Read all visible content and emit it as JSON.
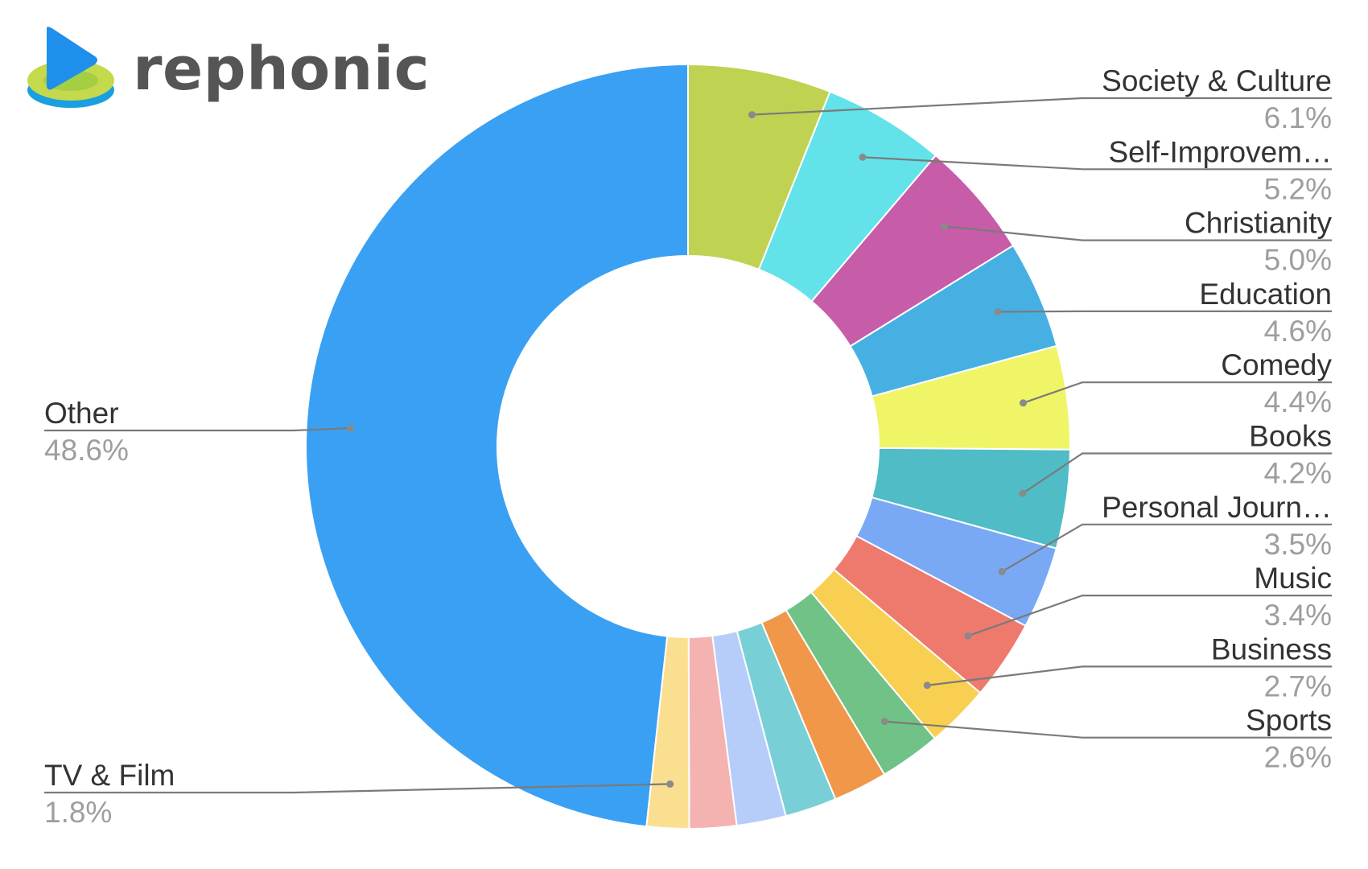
{
  "brand": {
    "name": "rephonic"
  },
  "chart_data": {
    "type": "pie",
    "donut": true,
    "title": "",
    "legend": "labels-with-leaders",
    "slices": [
      {
        "label": "Society & Culture",
        "value": 6.1,
        "display": "6.1%",
        "color": "#bfd252"
      },
      {
        "label": "Self-Improvem…",
        "value": 5.2,
        "display": "5.2%",
        "color": "#63e2ea"
      },
      {
        "label": "Christianity",
        "value": 5.0,
        "display": "5.0%",
        "color": "#c75ca9"
      },
      {
        "label": "Education",
        "value": 4.6,
        "display": "4.6%",
        "color": "#46b0e3"
      },
      {
        "label": "Comedy",
        "value": 4.4,
        "display": "4.4%",
        "color": "#eff567"
      },
      {
        "label": "Books",
        "value": 4.2,
        "display": "4.2%",
        "color": "#4fbcc6"
      },
      {
        "label": "Personal Journ…",
        "value": 3.5,
        "display": "3.5%",
        "color": "#79a9f5"
      },
      {
        "label": "Music",
        "value": 3.4,
        "display": "3.4%",
        "color": "#ee7a6e"
      },
      {
        "label": "Business",
        "value": 2.7,
        "display": "2.7%",
        "color": "#f8cf50"
      },
      {
        "label": "Sports",
        "value": 2.6,
        "display": "2.6%",
        "color": "#70c286"
      },
      {
        "label": "",
        "value": 2.3,
        "display": "",
        "color": "#f1974a"
      },
      {
        "label": "",
        "value": 2.2,
        "display": "",
        "color": "#79cfd6"
      },
      {
        "label": "",
        "value": 2.1,
        "display": "",
        "color": "#b6cdfa"
      },
      {
        "label": "",
        "value": 2.0,
        "display": "",
        "color": "#f4b2b0"
      },
      {
        "label": "TV & Film",
        "value": 1.8,
        "display": "1.8%",
        "color": "#fbdf91"
      },
      {
        "label": "Other",
        "value": 48.6,
        "display": "48.6%",
        "color": "#3aa0f3"
      }
    ]
  }
}
